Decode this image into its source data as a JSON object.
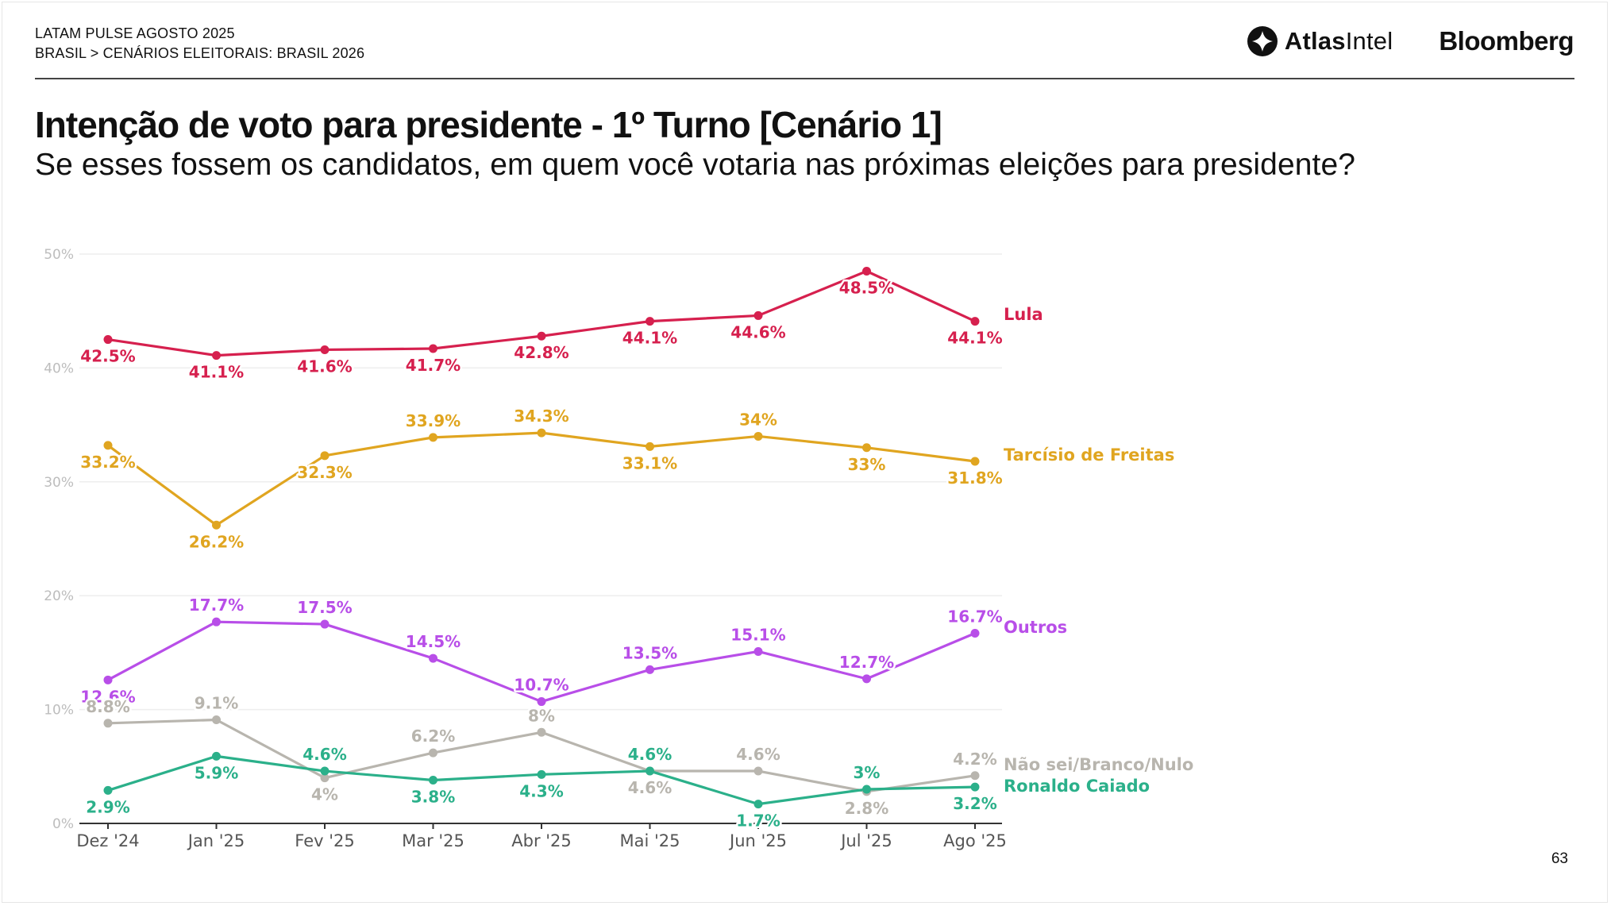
{
  "header": {
    "line1": "LATAM PULSE AGOSTO 2025",
    "line2": "BRASIL > CENÁRIOS ELEITORAIS: BRASIL 2026"
  },
  "logos": {
    "atlas_part1": "Atlas",
    "atlas_part2": "Intel",
    "atlas_icon": "atlas-diamond-icon",
    "bloomberg": "Bloomberg"
  },
  "page_number": "63",
  "chart_data": {
    "type": "line",
    "title": "Intenção de voto para presidente - 1º Turno [Cenário 1]",
    "subtitle": "Se esses fossem os candidatos, em quem você votaria nas próximas eleições para presidente?",
    "categories": [
      "Dez '24",
      "Jan '25",
      "Fev '25",
      "Mar '25",
      "Abr '25",
      "Mai '25",
      "Jun '25",
      "Jul '25",
      "Ago '25"
    ],
    "ylim": [
      0,
      50
    ],
    "yticks": [
      0,
      10,
      20,
      30,
      40,
      50
    ],
    "ytick_labels": [
      "0%",
      "10%",
      "20%",
      "30%",
      "40%",
      "50%"
    ],
    "grid": true,
    "series": [
      {
        "name": "Lula",
        "color": "#d6204e",
        "values": [
          42.5,
          41.1,
          41.6,
          41.7,
          42.8,
          44.1,
          44.6,
          48.5,
          44.1
        ],
        "labels": [
          "42.5%",
          "41.1%",
          "41.6%",
          "41.7%",
          "42.8%",
          "44.1%",
          "44.6%",
          "48.5%",
          "44.1%"
        ]
      },
      {
        "name": "Tarcísio de Freitas",
        "color": "#e0a520",
        "values": [
          33.2,
          26.2,
          32.3,
          33.9,
          34.3,
          33.1,
          34,
          33,
          31.8
        ],
        "labels": [
          "33.2%",
          "26.2%",
          "32.3%",
          "33.9%",
          "34.3%",
          "33.1%",
          "34%",
          "33%",
          "31.8%"
        ]
      },
      {
        "name": "Outros",
        "color": "#b84ee8",
        "values": [
          12.6,
          17.7,
          17.5,
          14.5,
          10.7,
          13.5,
          15.1,
          12.7,
          16.7
        ],
        "labels": [
          "12.6%",
          "17.7%",
          "17.5%",
          "14.5%",
          "10.7%",
          "13.5%",
          "15.1%",
          "12.7%",
          "16.7%"
        ]
      },
      {
        "name": "Não sei/Branco/Nulo",
        "color": "#b8b5ae",
        "values": [
          8.8,
          9.1,
          4,
          6.2,
          8,
          4.6,
          4.6,
          2.8,
          4.2
        ],
        "labels": [
          "8.8%",
          "9.1%",
          "4%",
          "6.2%",
          "8%",
          "4.6%",
          "4.6%",
          "2.8%",
          "4.2%"
        ]
      },
      {
        "name": "Ronaldo Caiado",
        "color": "#2bb08a",
        "values": [
          2.9,
          5.9,
          4.6,
          3.8,
          4.3,
          4.6,
          1.7,
          3,
          3.2
        ],
        "labels": [
          "2.9%",
          "5.9%",
          "4.6%",
          "3.8%",
          "4.3%",
          "4.6%",
          "1.7%",
          "3%",
          "3.2%"
        ]
      }
    ]
  }
}
